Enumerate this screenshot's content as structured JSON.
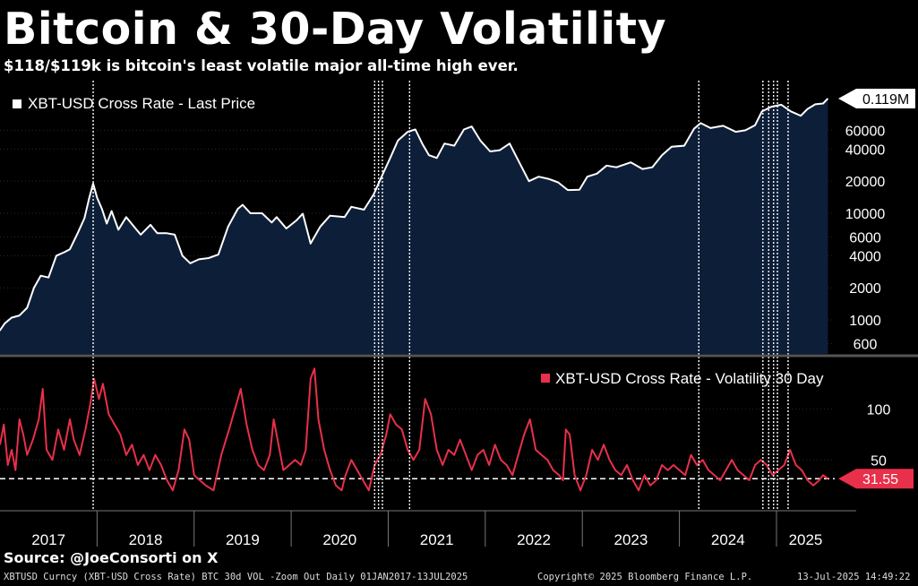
{
  "title": "Bitcoin & 30-Day Volatility",
  "subtitle": "$118/$119k is bitcoin's least volatile major all-time high ever.",
  "source": "Source: @JoeConsorti on X",
  "footer": {
    "left": "XBTUSD Curncy (XBT-USD Cross Rate) BTC 30d VOL -Zoom Out  Daily 01JAN2017-13JUL2025",
    "center": "Copyright© 2025 Bloomberg Finance L.P.",
    "right": "13-Jul-2025 14:49:22"
  },
  "colors": {
    "background": "#000000",
    "price_line": "#ffffff",
    "price_fill": "#0d1e38",
    "vol_line": "#e8304a",
    "panel_divider": "#555555"
  },
  "chart_data": [
    {
      "type": "area",
      "name": "price",
      "legend": "XBT-USD Cross Rate - Last Price",
      "scale": "log",
      "y_ticks": [
        600,
        1000,
        2000,
        4000,
        6000,
        10000,
        20000,
        40000,
        60000
      ],
      "y_tick_labels": [
        "600",
        "1000",
        "2000",
        "4000",
        "6000",
        "10000",
        "20000",
        "40000",
        "60000"
      ],
      "last_value": 119000,
      "last_value_label": "0.119M",
      "series": [
        {
          "t": 2017.0,
          "v": 800
        },
        {
          "t": 2017.05,
          "v": 930
        },
        {
          "t": 2017.12,
          "v": 1050
        },
        {
          "t": 2017.2,
          "v": 1100
        },
        {
          "t": 2017.28,
          "v": 1300
        },
        {
          "t": 2017.35,
          "v": 2000
        },
        {
          "t": 2017.42,
          "v": 2600
        },
        {
          "t": 2017.5,
          "v": 2500
        },
        {
          "t": 2017.58,
          "v": 4000
        },
        {
          "t": 2017.66,
          "v": 4300
        },
        {
          "t": 2017.72,
          "v": 4600
        },
        {
          "t": 2017.8,
          "v": 6500
        },
        {
          "t": 2017.87,
          "v": 9000
        },
        {
          "t": 2017.92,
          "v": 14000
        },
        {
          "t": 2017.96,
          "v": 19000
        },
        {
          "t": 2018.0,
          "v": 14000
        },
        {
          "t": 2018.05,
          "v": 11000
        },
        {
          "t": 2018.1,
          "v": 8000
        },
        {
          "t": 2018.15,
          "v": 10500
        },
        {
          "t": 2018.22,
          "v": 7000
        },
        {
          "t": 2018.3,
          "v": 9200
        },
        {
          "t": 2018.38,
          "v": 7500
        },
        {
          "t": 2018.45,
          "v": 6300
        },
        {
          "t": 2018.55,
          "v": 7800
        },
        {
          "t": 2018.62,
          "v": 6500
        },
        {
          "t": 2018.72,
          "v": 6500
        },
        {
          "t": 2018.8,
          "v": 6300
        },
        {
          "t": 2018.88,
          "v": 4000
        },
        {
          "t": 2018.96,
          "v": 3400
        },
        {
          "t": 2019.05,
          "v": 3700
        },
        {
          "t": 2019.15,
          "v": 3800
        },
        {
          "t": 2019.25,
          "v": 4100
        },
        {
          "t": 2019.35,
          "v": 7500
        },
        {
          "t": 2019.45,
          "v": 11000
        },
        {
          "t": 2019.5,
          "v": 12000
        },
        {
          "t": 2019.58,
          "v": 10000
        },
        {
          "t": 2019.7,
          "v": 10000
        },
        {
          "t": 2019.8,
          "v": 8200
        },
        {
          "t": 2019.85,
          "v": 9200
        },
        {
          "t": 2019.95,
          "v": 7200
        },
        {
          "t": 2020.05,
          "v": 8500
        },
        {
          "t": 2020.12,
          "v": 9900
        },
        {
          "t": 2020.2,
          "v": 5200
        },
        {
          "t": 2020.3,
          "v": 7500
        },
        {
          "t": 2020.4,
          "v": 9500
        },
        {
          "t": 2020.55,
          "v": 9200
        },
        {
          "t": 2020.62,
          "v": 11500
        },
        {
          "t": 2020.75,
          "v": 10800
        },
        {
          "t": 2020.85,
          "v": 15000
        },
        {
          "t": 2020.95,
          "v": 24000
        },
        {
          "t": 2021.02,
          "v": 33000
        },
        {
          "t": 2021.1,
          "v": 48000
        },
        {
          "t": 2021.2,
          "v": 58000
        },
        {
          "t": 2021.28,
          "v": 61000
        },
        {
          "t": 2021.35,
          "v": 45000
        },
        {
          "t": 2021.42,
          "v": 35000
        },
        {
          "t": 2021.5,
          "v": 33000
        },
        {
          "t": 2021.58,
          "v": 45000
        },
        {
          "t": 2021.68,
          "v": 43000
        },
        {
          "t": 2021.78,
          "v": 61000
        },
        {
          "t": 2021.86,
          "v": 65000
        },
        {
          "t": 2021.95,
          "v": 48000
        },
        {
          "t": 2022.05,
          "v": 38000
        },
        {
          "t": 2022.15,
          "v": 39000
        },
        {
          "t": 2022.25,
          "v": 45000
        },
        {
          "t": 2022.35,
          "v": 30000
        },
        {
          "t": 2022.45,
          "v": 20000
        },
        {
          "t": 2022.55,
          "v": 22000
        },
        {
          "t": 2022.65,
          "v": 21000
        },
        {
          "t": 2022.75,
          "v": 19500
        },
        {
          "t": 2022.85,
          "v": 16500
        },
        {
          "t": 2022.97,
          "v": 16600
        },
        {
          "t": 2023.05,
          "v": 22000
        },
        {
          "t": 2023.15,
          "v": 23500
        },
        {
          "t": 2023.25,
          "v": 28000
        },
        {
          "t": 2023.35,
          "v": 27000
        },
        {
          "t": 2023.5,
          "v": 30000
        },
        {
          "t": 2023.62,
          "v": 26000
        },
        {
          "t": 2023.72,
          "v": 27000
        },
        {
          "t": 2023.82,
          "v": 35000
        },
        {
          "t": 2023.92,
          "v": 42000
        },
        {
          "t": 2024.05,
          "v": 43000
        },
        {
          "t": 2024.15,
          "v": 62000
        },
        {
          "t": 2024.22,
          "v": 70000
        },
        {
          "t": 2024.32,
          "v": 63000
        },
        {
          "t": 2024.45,
          "v": 66000
        },
        {
          "t": 2024.58,
          "v": 58000
        },
        {
          "t": 2024.68,
          "v": 60000
        },
        {
          "t": 2024.78,
          "v": 67000
        },
        {
          "t": 2024.85,
          "v": 90000
        },
        {
          "t": 2024.95,
          "v": 100000
        },
        {
          "t": 2025.05,
          "v": 104000
        },
        {
          "t": 2025.15,
          "v": 90000
        },
        {
          "t": 2025.25,
          "v": 82000
        },
        {
          "t": 2025.32,
          "v": 95000
        },
        {
          "t": 2025.4,
          "v": 105000
        },
        {
          "t": 2025.48,
          "v": 107000
        },
        {
          "t": 2025.53,
          "v": 119000
        }
      ]
    },
    {
      "type": "line",
      "name": "volatility",
      "legend": "XBT-USD Cross Rate - Volatility 30 Day",
      "y_ticks": [
        50,
        100
      ],
      "y_tick_labels": [
        "50",
        "100"
      ],
      "reference_line": 31.55,
      "last_value": 31.55,
      "last_value_label": "31.55",
      "series": [
        {
          "t": 2017.0,
          "v": 65
        },
        {
          "t": 2017.04,
          "v": 85
        },
        {
          "t": 2017.08,
          "v": 45
        },
        {
          "t": 2017.12,
          "v": 60
        },
        {
          "t": 2017.16,
          "v": 40
        },
        {
          "t": 2017.2,
          "v": 90
        },
        {
          "t": 2017.24,
          "v": 75
        },
        {
          "t": 2017.28,
          "v": 55
        },
        {
          "t": 2017.34,
          "v": 70
        },
        {
          "t": 2017.4,
          "v": 90
        },
        {
          "t": 2017.44,
          "v": 120
        },
        {
          "t": 2017.48,
          "v": 60
        },
        {
          "t": 2017.54,
          "v": 50
        },
        {
          "t": 2017.6,
          "v": 80
        },
        {
          "t": 2017.66,
          "v": 60
        },
        {
          "t": 2017.72,
          "v": 90
        },
        {
          "t": 2017.76,
          "v": 70
        },
        {
          "t": 2017.82,
          "v": 55
        },
        {
          "t": 2017.88,
          "v": 80
        },
        {
          "t": 2017.93,
          "v": 105
        },
        {
          "t": 2017.97,
          "v": 130
        },
        {
          "t": 2018.02,
          "v": 110
        },
        {
          "t": 2018.06,
          "v": 125
        },
        {
          "t": 2018.12,
          "v": 95
        },
        {
          "t": 2018.18,
          "v": 85
        },
        {
          "t": 2018.24,
          "v": 75
        },
        {
          "t": 2018.3,
          "v": 55
        },
        {
          "t": 2018.36,
          "v": 65
        },
        {
          "t": 2018.42,
          "v": 45
        },
        {
          "t": 2018.48,
          "v": 55
        },
        {
          "t": 2018.54,
          "v": 40
        },
        {
          "t": 2018.6,
          "v": 55
        },
        {
          "t": 2018.66,
          "v": 45
        },
        {
          "t": 2018.72,
          "v": 30
        },
        {
          "t": 2018.78,
          "v": 20
        },
        {
          "t": 2018.84,
          "v": 40
        },
        {
          "t": 2018.9,
          "v": 80
        },
        {
          "t": 2018.95,
          "v": 70
        },
        {
          "t": 2019.0,
          "v": 35
        },
        {
          "t": 2019.06,
          "v": 30
        },
        {
          "t": 2019.12,
          "v": 25
        },
        {
          "t": 2019.2,
          "v": 20
        },
        {
          "t": 2019.28,
          "v": 55
        },
        {
          "t": 2019.36,
          "v": 80
        },
        {
          "t": 2019.42,
          "v": 100
        },
        {
          "t": 2019.48,
          "v": 120
        },
        {
          "t": 2019.54,
          "v": 85
        },
        {
          "t": 2019.6,
          "v": 60
        },
        {
          "t": 2019.66,
          "v": 45
        },
        {
          "t": 2019.72,
          "v": 40
        },
        {
          "t": 2019.78,
          "v": 55
        },
        {
          "t": 2019.82,
          "v": 90
        },
        {
          "t": 2019.86,
          "v": 70
        },
        {
          "t": 2019.92,
          "v": 40
        },
        {
          "t": 2019.98,
          "v": 45
        },
        {
          "t": 2020.04,
          "v": 50
        },
        {
          "t": 2020.1,
          "v": 45
        },
        {
          "t": 2020.15,
          "v": 60
        },
        {
          "t": 2020.2,
          "v": 130
        },
        {
          "t": 2020.24,
          "v": 140
        },
        {
          "t": 2020.28,
          "v": 90
        },
        {
          "t": 2020.34,
          "v": 60
        },
        {
          "t": 2020.4,
          "v": 40
        },
        {
          "t": 2020.46,
          "v": 25
        },
        {
          "t": 2020.52,
          "v": 20
        },
        {
          "t": 2020.56,
          "v": 35
        },
        {
          "t": 2020.62,
          "v": 50
        },
        {
          "t": 2020.68,
          "v": 40
        },
        {
          "t": 2020.74,
          "v": 30
        },
        {
          "t": 2020.8,
          "v": 20
        },
        {
          "t": 2020.86,
          "v": 45
        },
        {
          "t": 2020.92,
          "v": 55
        },
        {
          "t": 2020.98,
          "v": 75
        },
        {
          "t": 2021.02,
          "v": 95
        },
        {
          "t": 2021.08,
          "v": 85
        },
        {
          "t": 2021.14,
          "v": 80
        },
        {
          "t": 2021.2,
          "v": 60
        },
        {
          "t": 2021.26,
          "v": 50
        },
        {
          "t": 2021.32,
          "v": 60
        },
        {
          "t": 2021.38,
          "v": 110
        },
        {
          "t": 2021.44,
          "v": 95
        },
        {
          "t": 2021.5,
          "v": 60
        },
        {
          "t": 2021.56,
          "v": 45
        },
        {
          "t": 2021.62,
          "v": 60
        },
        {
          "t": 2021.68,
          "v": 55
        },
        {
          "t": 2021.74,
          "v": 70
        },
        {
          "t": 2021.8,
          "v": 55
        },
        {
          "t": 2021.86,
          "v": 40
        },
        {
          "t": 2021.92,
          "v": 55
        },
        {
          "t": 2021.98,
          "v": 60
        },
        {
          "t": 2022.04,
          "v": 45
        },
        {
          "t": 2022.1,
          "v": 65
        },
        {
          "t": 2022.16,
          "v": 50
        },
        {
          "t": 2022.22,
          "v": 45
        },
        {
          "t": 2022.28,
          "v": 35
        },
        {
          "t": 2022.34,
          "v": 55
        },
        {
          "t": 2022.4,
          "v": 75
        },
        {
          "t": 2022.46,
          "v": 90
        },
        {
          "t": 2022.52,
          "v": 60
        },
        {
          "t": 2022.58,
          "v": 55
        },
        {
          "t": 2022.64,
          "v": 50
        },
        {
          "t": 2022.7,
          "v": 40
        },
        {
          "t": 2022.76,
          "v": 35
        },
        {
          "t": 2022.8,
          "v": 30
        },
        {
          "t": 2022.83,
          "v": 80
        },
        {
          "t": 2022.87,
          "v": 75
        },
        {
          "t": 2022.92,
          "v": 35
        },
        {
          "t": 2022.98,
          "v": 20
        },
        {
          "t": 2023.04,
          "v": 35
        },
        {
          "t": 2023.1,
          "v": 60
        },
        {
          "t": 2023.16,
          "v": 50
        },
        {
          "t": 2023.22,
          "v": 65
        },
        {
          "t": 2023.28,
          "v": 50
        },
        {
          "t": 2023.34,
          "v": 40
        },
        {
          "t": 2023.4,
          "v": 35
        },
        {
          "t": 2023.46,
          "v": 45
        },
        {
          "t": 2023.52,
          "v": 30
        },
        {
          "t": 2023.58,
          "v": 20
        },
        {
          "t": 2023.64,
          "v": 35
        },
        {
          "t": 2023.7,
          "v": 25
        },
        {
          "t": 2023.76,
          "v": 30
        },
        {
          "t": 2023.82,
          "v": 45
        },
        {
          "t": 2023.88,
          "v": 40
        },
        {
          "t": 2023.94,
          "v": 45
        },
        {
          "t": 2024.0,
          "v": 40
        },
        {
          "t": 2024.06,
          "v": 35
        },
        {
          "t": 2024.12,
          "v": 55
        },
        {
          "t": 2024.18,
          "v": 45
        },
        {
          "t": 2024.24,
          "v": 50
        },
        {
          "t": 2024.3,
          "v": 40
        },
        {
          "t": 2024.36,
          "v": 35
        },
        {
          "t": 2024.42,
          "v": 30
        },
        {
          "t": 2024.48,
          "v": 40
        },
        {
          "t": 2024.54,
          "v": 50
        },
        {
          "t": 2024.6,
          "v": 40
        },
        {
          "t": 2024.66,
          "v": 35
        },
        {
          "t": 2024.72,
          "v": 30
        },
        {
          "t": 2024.78,
          "v": 45
        },
        {
          "t": 2024.84,
          "v": 50
        },
        {
          "t": 2024.9,
          "v": 45
        },
        {
          "t": 2024.96,
          "v": 35
        },
        {
          "t": 2025.02,
          "v": 40
        },
        {
          "t": 2025.08,
          "v": 45
        },
        {
          "t": 2025.14,
          "v": 60
        },
        {
          "t": 2025.2,
          "v": 45
        },
        {
          "t": 2025.26,
          "v": 40
        },
        {
          "t": 2025.32,
          "v": 30
        },
        {
          "t": 2025.38,
          "v": 25
        },
        {
          "t": 2025.44,
          "v": 30
        },
        {
          "t": 2025.48,
          "v": 35
        },
        {
          "t": 2025.53,
          "v": 31.55
        }
      ]
    }
  ],
  "x_axis": {
    "labels": [
      "2017",
      "2018",
      "2019",
      "2020",
      "2021",
      "2022",
      "2023",
      "2024",
      "2025"
    ],
    "range": [
      2017.0,
      2025.6
    ]
  },
  "event_markers": [
    2017.96,
    2020.86,
    2020.9,
    2020.94,
    2021.22,
    2024.2,
    2024.86,
    2024.92,
    2024.97,
    2025.01,
    2025.12
  ]
}
